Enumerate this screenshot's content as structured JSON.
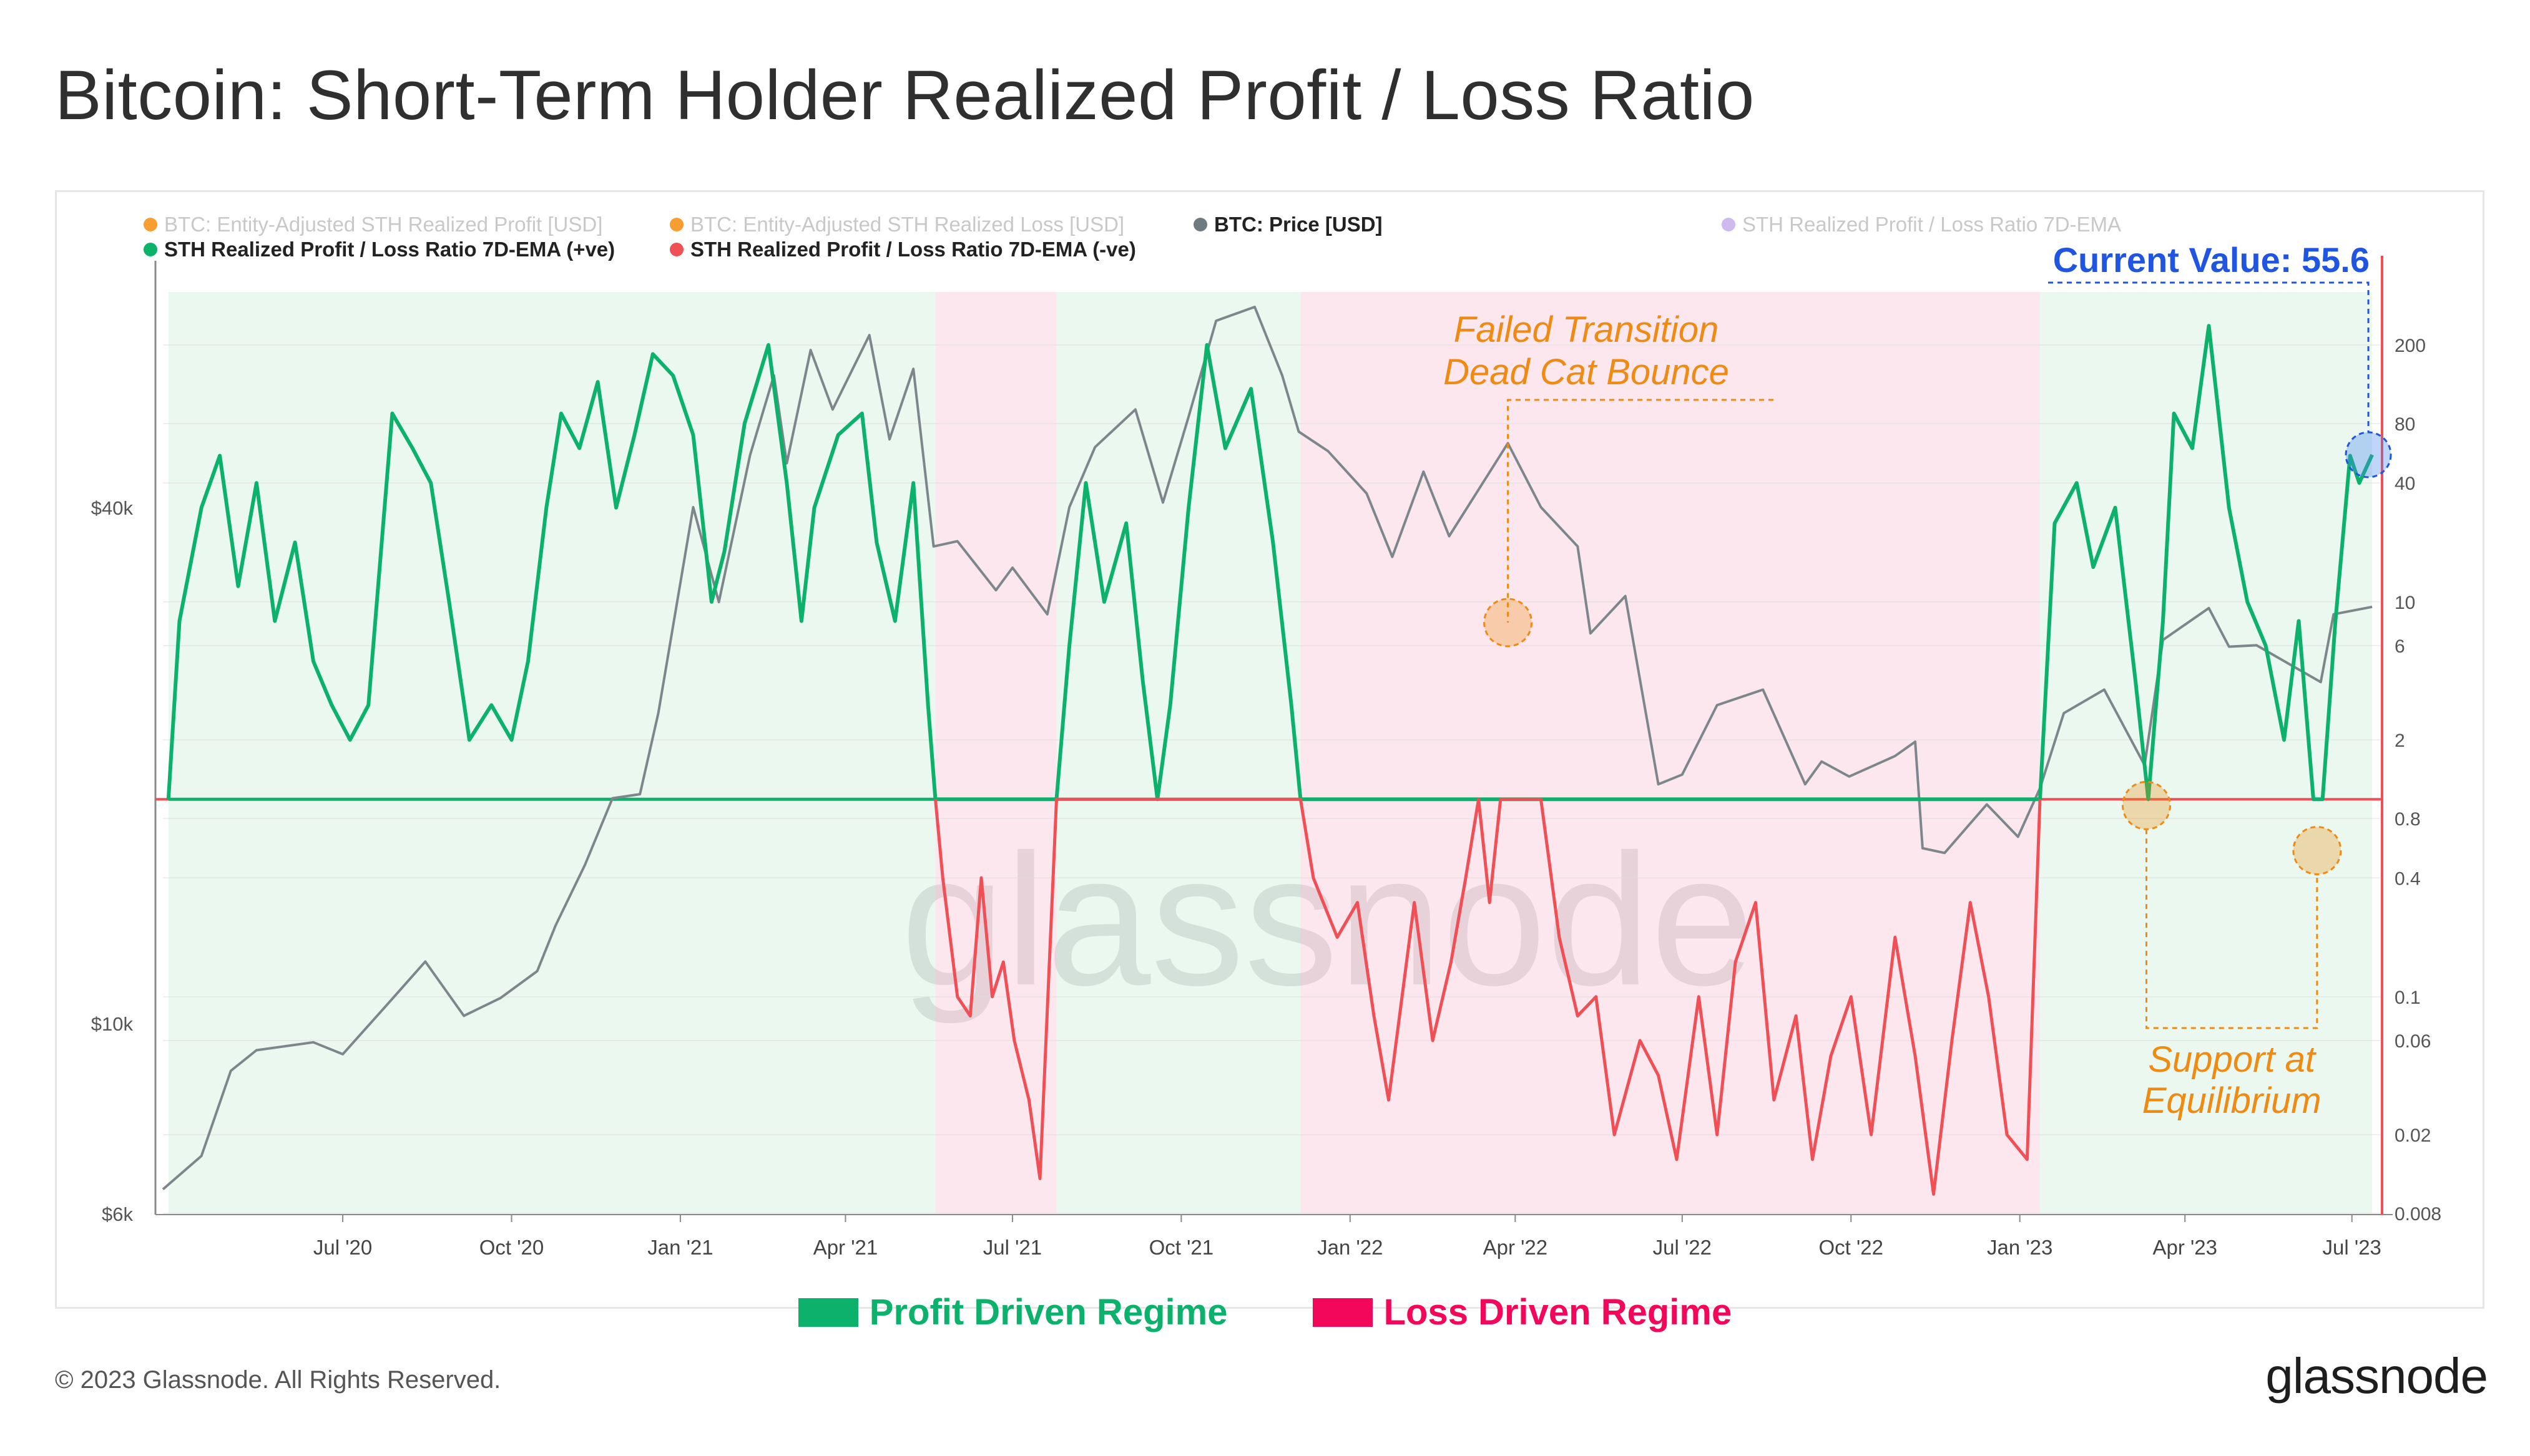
{
  "title": "Bitcoin: Short-Term Holder Realized Profit / Loss Ratio",
  "legend": [
    {
      "label": "BTC: Entity-Adjusted STH Realized Profit [USD]",
      "color": "#f7931a",
      "active": false
    },
    {
      "label": "BTC: Entity-Adjusted STH Realized Loss [USD]",
      "color": "#f7931a",
      "active": false
    },
    {
      "label": "BTC: Price [USD]",
      "color": "#6f7b80",
      "active": true
    },
    {
      "label": "STH Realized Profit / Loss Ratio 7D-EMA",
      "color": "#c9b3f0",
      "active": false
    },
    {
      "label": "STH Realized Profit / Loss Ratio 7D-EMA (+ve)",
      "color": "#0cb26b",
      "active": true
    },
    {
      "label": "STH Realized Profit / Loss Ratio 7D-EMA (-ve)",
      "color": "#ef4f55",
      "active": true
    }
  ],
  "annotations": {
    "current_value": "Current Value: 55.6",
    "failed_transition": [
      "Failed Transition",
      "Dead Cat Bounce"
    ],
    "support": [
      "Support at",
      "Equilibrium"
    ],
    "watermark": "glassnode"
  },
  "bottom_legend": [
    {
      "label": "Profit Driven Regime",
      "color": "#0cb26b"
    },
    {
      "label": "Loss Driven Regime",
      "color": "#f2075a"
    }
  ],
  "footer": {
    "copyright": "© 2023 Glassnode. All Rights Reserved.",
    "brand": "glassnode"
  },
  "colors": {
    "profit_bg": "#eaf8f0",
    "loss_bg": "#fde7ee",
    "green": "#0cb26b",
    "red": "#ef4f55",
    "price": "#7d878b",
    "annotation": "#ef8a12",
    "current": "#1f55e0"
  },
  "chart_data": {
    "type": "line",
    "x_ticks": [
      "Jul '20",
      "Oct '20",
      "Jan '21",
      "Apr '21",
      "Jul '21",
      "Oct '21",
      "Jan '22",
      "Apr '22",
      "Jul '22",
      "Oct '22",
      "Jan '23",
      "Apr '23",
      "Jul '23"
    ],
    "y_left": {
      "ticks": [
        "$6k",
        "$10k",
        "$40k"
      ],
      "scale": "log"
    },
    "y_right": {
      "ticks": [
        "0.008",
        "0.02",
        "0.06",
        "0.1",
        "0.4",
        "0.8",
        "2",
        "6",
        "10",
        "40",
        "80",
        "200"
      ],
      "scale": "log",
      "equilibrium": 1
    },
    "regimes": [
      {
        "type": "profit",
        "start": "2020-03-28",
        "end": "2021-05-20"
      },
      {
        "type": "loss",
        "start": "2021-05-20",
        "end": "2021-07-25"
      },
      {
        "type": "profit",
        "start": "2021-07-25",
        "end": "2021-12-05"
      },
      {
        "type": "loss",
        "start": "2021-12-05",
        "end": "2023-01-12"
      },
      {
        "type": "profit",
        "start": "2023-01-12",
        "end": "2023-07-12"
      }
    ],
    "series": [
      {
        "name": "BTC: Price [USD]",
        "axis": "left",
        "points": [
          [
            "2020-03-25",
            6400
          ],
          [
            "2020-04-15",
            7000
          ],
          [
            "2020-05-01",
            8800
          ],
          [
            "2020-05-15",
            9300
          ],
          [
            "2020-06-15",
            9500
          ],
          [
            "2020-07-01",
            9200
          ],
          [
            "2020-07-25",
            10500
          ],
          [
            "2020-08-15",
            11800
          ],
          [
            "2020-09-05",
            10200
          ],
          [
            "2020-09-25",
            10700
          ],
          [
            "2020-10-15",
            11500
          ],
          [
            "2020-10-25",
            13000
          ],
          [
            "2020-11-10",
            15300
          ],
          [
            "2020-11-25",
            18300
          ],
          [
            "2020-12-10",
            18500
          ],
          [
            "2020-12-20",
            23000
          ],
          [
            "2021-01-08",
            40000
          ],
          [
            "2021-01-22",
            31000
          ],
          [
            "2021-02-08",
            46000
          ],
          [
            "2021-02-21",
            57000
          ],
          [
            "2021-02-28",
            45000
          ],
          [
            "2021-03-13",
            61000
          ],
          [
            "2021-03-25",
            52000
          ],
          [
            "2021-04-14",
            63500
          ],
          [
            "2021-04-25",
            48000
          ],
          [
            "2021-05-08",
            58000
          ],
          [
            "2021-05-19",
            36000
          ],
          [
            "2021-06-01",
            36500
          ],
          [
            "2021-06-22",
            32000
          ],
          [
            "2021-07-01",
            34000
          ],
          [
            "2021-07-20",
            30000
          ],
          [
            "2021-08-01",
            40000
          ],
          [
            "2021-08-15",
            47000
          ],
          [
            "2021-09-06",
            52000
          ],
          [
            "2021-09-21",
            40500
          ],
          [
            "2021-10-05",
            51000
          ],
          [
            "2021-10-20",
            66000
          ],
          [
            "2021-11-10",
            68500
          ],
          [
            "2021-11-25",
            57000
          ],
          [
            "2021-12-04",
            49000
          ],
          [
            "2021-12-20",
            46500
          ],
          [
            "2022-01-10",
            41500
          ],
          [
            "2022-01-24",
            35000
          ],
          [
            "2022-02-10",
            44000
          ],
          [
            "2022-02-24",
            37000
          ],
          [
            "2022-03-28",
            47500
          ],
          [
            "2022-04-15",
            40000
          ],
          [
            "2022-05-05",
            36000
          ],
          [
            "2022-05-12",
            28500
          ],
          [
            "2022-05-31",
            31500
          ],
          [
            "2022-06-18",
            19000
          ],
          [
            "2022-07-01",
            19500
          ],
          [
            "2022-07-20",
            23500
          ],
          [
            "2022-08-14",
            24500
          ],
          [
            "2022-09-06",
            19000
          ],
          [
            "2022-09-15",
            20200
          ],
          [
            "2022-09-30",
            19400
          ],
          [
            "2022-10-25",
            20500
          ],
          [
            "2022-11-05",
            21300
          ],
          [
            "2022-11-09",
            16000
          ],
          [
            "2022-11-21",
            15800
          ],
          [
            "2022-12-14",
            18000
          ],
          [
            "2022-12-31",
            16500
          ],
          [
            "2023-01-12",
            18800
          ],
          [
            "2023-01-25",
            23000
          ],
          [
            "2023-02-16",
            24500
          ],
          [
            "2023-03-10",
            20000
          ],
          [
            "2023-03-20",
            28000
          ],
          [
            "2023-04-14",
            30500
          ],
          [
            "2023-04-25",
            27500
          ],
          [
            "2023-05-10",
            27600
          ],
          [
            "2023-06-14",
            25000
          ],
          [
            "2023-06-21",
            30000
          ],
          [
            "2023-07-12",
            30600
          ]
        ]
      },
      {
        "name": "STH Realized Profit / Loss Ratio 7D-EMA (+ve)",
        "axis": "right",
        "points": [
          [
            "2020-03-28",
            1
          ],
          [
            "2020-04-03",
            8
          ],
          [
            "2020-04-15",
            30
          ],
          [
            "2020-04-25",
            55
          ],
          [
            "2020-05-05",
            12
          ],
          [
            "2020-05-15",
            40
          ],
          [
            "2020-05-25",
            8
          ],
          [
            "2020-06-05",
            20
          ],
          [
            "2020-06-15",
            5
          ],
          [
            "2020-06-25",
            3
          ],
          [
            "2020-07-05",
            2
          ],
          [
            "2020-07-15",
            3
          ],
          [
            "2020-07-28",
            90
          ],
          [
            "2020-08-08",
            60
          ],
          [
            "2020-08-18",
            40
          ],
          [
            "2020-08-28",
            10
          ],
          [
            "2020-09-08",
            2
          ],
          [
            "2020-09-20",
            3
          ],
          [
            "2020-10-01",
            2
          ],
          [
            "2020-10-10",
            5
          ],
          [
            "2020-10-20",
            30
          ],
          [
            "2020-10-28",
            90
          ],
          [
            "2020-11-07",
            60
          ],
          [
            "2020-11-17",
            130
          ],
          [
            "2020-11-27",
            30
          ],
          [
            "2020-12-07",
            70
          ],
          [
            "2020-12-17",
            180
          ],
          [
            "2020-12-28",
            140
          ],
          [
            "2021-01-08",
            70
          ],
          [
            "2021-01-18",
            10
          ],
          [
            "2021-01-25",
            18
          ],
          [
            "2021-02-05",
            80
          ],
          [
            "2021-02-18",
            200
          ],
          [
            "2021-02-28",
            40
          ],
          [
            "2021-03-08",
            8
          ],
          [
            "2021-03-15",
            30
          ],
          [
            "2021-03-28",
            70
          ],
          [
            "2021-04-10",
            90
          ],
          [
            "2021-04-18",
            20
          ],
          [
            "2021-04-28",
            8
          ],
          [
            "2021-05-08",
            40
          ],
          [
            "2021-05-16",
            3
          ],
          [
            "2021-05-20",
            1
          ],
          [
            "2021-07-25",
            1
          ],
          [
            "2021-08-01",
            6
          ],
          [
            "2021-08-10",
            40
          ],
          [
            "2021-08-20",
            10
          ],
          [
            "2021-09-01",
            25
          ],
          [
            "2021-09-10",
            4
          ],
          [
            "2021-09-18",
            1
          ],
          [
            "2021-09-25",
            3
          ],
          [
            "2021-10-05",
            30
          ],
          [
            "2021-10-15",
            200
          ],
          [
            "2021-10-25",
            60
          ],
          [
            "2021-11-08",
            120
          ],
          [
            "2021-11-20",
            20
          ],
          [
            "2021-11-30",
            3
          ],
          [
            "2021-12-05",
            1
          ],
          [
            "2023-01-12",
            1
          ],
          [
            "2023-01-20",
            25
          ],
          [
            "2023-02-01",
            40
          ],
          [
            "2023-02-10",
            15
          ],
          [
            "2023-02-22",
            30
          ],
          [
            "2023-03-05",
            4
          ],
          [
            "2023-03-12",
            1
          ],
          [
            "2023-03-20",
            8
          ],
          [
            "2023-03-26",
            90
          ],
          [
            "2023-04-05",
            60
          ],
          [
            "2023-04-14",
            250
          ],
          [
            "2023-04-25",
            30
          ],
          [
            "2023-05-05",
            10
          ],
          [
            "2023-05-15",
            6
          ],
          [
            "2023-05-25",
            2
          ],
          [
            "2023-06-02",
            8
          ],
          [
            "2023-06-10",
            1
          ],
          [
            "2023-06-15",
            1
          ],
          [
            "2023-06-22",
            8
          ],
          [
            "2023-06-30",
            55
          ],
          [
            "2023-07-05",
            40
          ],
          [
            "2023-07-12",
            55.6
          ]
        ]
      },
      {
        "name": "STH Realized Profit / Loss Ratio 7D-EMA (-ve)",
        "axis": "right",
        "points": [
          [
            "2021-05-20",
            1
          ],
          [
            "2021-05-24",
            0.4
          ],
          [
            "2021-06-01",
            0.1
          ],
          [
            "2021-06-08",
            0.08
          ],
          [
            "2021-06-14",
            0.4
          ],
          [
            "2021-06-20",
            0.1
          ],
          [
            "2021-06-26",
            0.15
          ],
          [
            "2021-07-02",
            0.06
          ],
          [
            "2021-07-10",
            0.03
          ],
          [
            "2021-07-16",
            0.012
          ],
          [
            "2021-07-25",
            1
          ],
          [
            "2021-12-05",
            1
          ],
          [
            "2021-12-12",
            0.4
          ],
          [
            "2021-12-25",
            0.2
          ],
          [
            "2022-01-05",
            0.3
          ],
          [
            "2022-01-14",
            0.08
          ],
          [
            "2022-01-22",
            0.03
          ],
          [
            "2022-02-05",
            0.3
          ],
          [
            "2022-02-15",
            0.06
          ],
          [
            "2022-02-25",
            0.15
          ],
          [
            "2022-03-05",
            0.4
          ],
          [
            "2022-03-12",
            1
          ],
          [
            "2022-03-18",
            0.3
          ],
          [
            "2022-03-24",
            1
          ],
          [
            "2022-04-03",
            1
          ],
          [
            "2022-04-15",
            1
          ],
          [
            "2022-04-25",
            0.2
          ],
          [
            "2022-05-05",
            0.08
          ],
          [
            "2022-05-15",
            0.1
          ],
          [
            "2022-05-25",
            0.02
          ],
          [
            "2022-06-08",
            0.06
          ],
          [
            "2022-06-18",
            0.04
          ],
          [
            "2022-06-28",
            0.015
          ],
          [
            "2022-07-10",
            0.1
          ],
          [
            "2022-07-20",
            0.02
          ],
          [
            "2022-07-30",
            0.15
          ],
          [
            "2022-08-10",
            0.3
          ],
          [
            "2022-08-20",
            0.03
          ],
          [
            "2022-09-01",
            0.08
          ],
          [
            "2022-09-10",
            0.015
          ],
          [
            "2022-09-20",
            0.05
          ],
          [
            "2022-10-01",
            0.1
          ],
          [
            "2022-10-12",
            0.02
          ],
          [
            "2022-10-25",
            0.2
          ],
          [
            "2022-11-05",
            0.05
          ],
          [
            "2022-11-15",
            0.01
          ],
          [
            "2022-11-25",
            0.06
          ],
          [
            "2022-12-05",
            0.3
          ],
          [
            "2022-12-15",
            0.1
          ],
          [
            "2022-12-25",
            0.02
          ],
          [
            "2023-01-05",
            0.015
          ],
          [
            "2023-01-12",
            1
          ]
        ]
      }
    ]
  }
}
